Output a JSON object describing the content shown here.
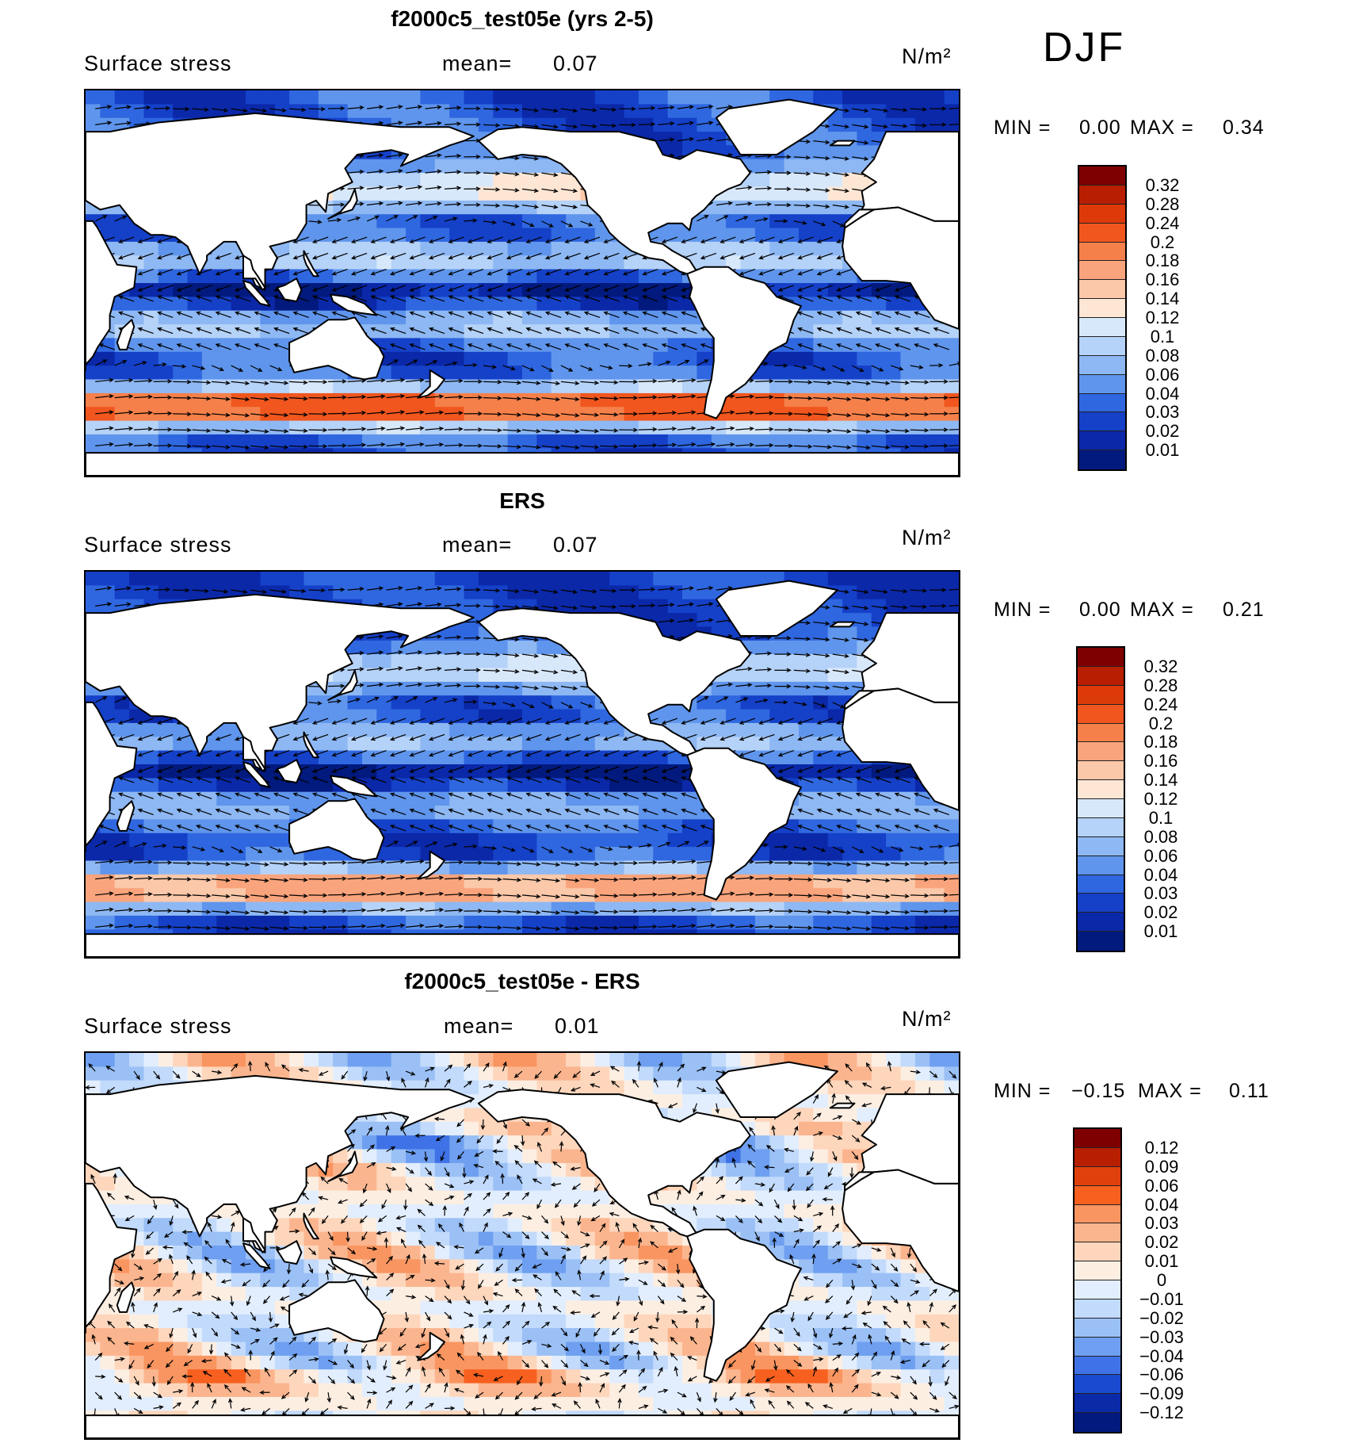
{
  "season": "DJF",
  "panels": [
    {
      "title": "f2000c5_test05e (yrs 2-5)",
      "variable": "Surface stress",
      "mean_label": "mean=",
      "mean_value": "0.07",
      "units": "N/m²",
      "min_label": "MIN =",
      "min_value": "0.00",
      "max_label": "MAX =",
      "max_value": "0.34",
      "cbar_ticks": [
        "0.32",
        "0.28",
        "0.24",
        "0.2",
        "0.18",
        "0.16",
        "0.14",
        "0.12",
        "0.1",
        "0.08",
        "0.06",
        "0.04",
        "0.03",
        "0.02",
        "0.01"
      ]
    },
    {
      "title": "ERS",
      "variable": "Surface stress",
      "mean_label": "mean=",
      "mean_value": "0.07",
      "units": "N/m²",
      "min_label": "MIN =",
      "min_value": "0.00",
      "max_label": "MAX =",
      "max_value": "0.21",
      "cbar_ticks": [
        "0.32",
        "0.28",
        "0.24",
        "0.2",
        "0.18",
        "0.16",
        "0.14",
        "0.12",
        "0.1",
        "0.08",
        "0.06",
        "0.04",
        "0.03",
        "0.02",
        "0.01"
      ]
    },
    {
      "title": "f2000c5_test05e - ERS",
      "variable": "Surface stress",
      "mean_label": "mean=",
      "mean_value": "0.01",
      "units": "N/m²",
      "min_label": "MIN =",
      "min_value": "−0.15",
      "max_label": "MAX =",
      "max_value": "0.11",
      "cbar_ticks": [
        "0.12",
        "0.09",
        "0.06",
        "0.04",
        "0.03",
        "0.02",
        "0.01",
        "0",
        "−0.01",
        "−0.02",
        "−0.03",
        "−0.04",
        "−0.06",
        "−0.09",
        "−0.12"
      ]
    }
  ],
  "colors": {
    "abs_scale": [
      "#7f0000",
      "#b81e00",
      "#dd3a0a",
      "#f0561e",
      "#f6804a",
      "#f9a47c",
      "#fbc8aa",
      "#fde6d4",
      "#d8e8fb",
      "#b5d2f8",
      "#8eb8f3",
      "#5f95ec",
      "#2f67e0",
      "#1540c8",
      "#0a28a8",
      "#021a7e"
    ],
    "diff_scale": [
      "#7f0000",
      "#b81e00",
      "#e0400c",
      "#f7601f",
      "#f99560",
      "#fbb58e",
      "#fdd6bc",
      "#fdeee2",
      "#e2eefd",
      "#c2dafb",
      "#9ac0f6",
      "#6e9ff0",
      "#3f72e6",
      "#1a4ad0",
      "#0a2aa8",
      "#021a7e"
    ]
  },
  "chart_data": [
    {
      "type": "heatmap",
      "title": "f2000c5_test05e (yrs 2-5)",
      "subtitle": "DJF",
      "variable": "Surface stress",
      "units": "N/m²",
      "mean": 0.07,
      "min": 0.0,
      "max": 0.34,
      "levels": [
        0.01,
        0.02,
        0.03,
        0.04,
        0.06,
        0.08,
        0.1,
        0.12,
        0.14,
        0.16,
        0.18,
        0.2,
        0.24,
        0.28,
        0.32
      ],
      "overlay": "vectors"
    },
    {
      "type": "heatmap",
      "title": "ERS",
      "subtitle": "DJF",
      "variable": "Surface stress",
      "units": "N/m²",
      "mean": 0.07,
      "min": 0.0,
      "max": 0.21,
      "levels": [
        0.01,
        0.02,
        0.03,
        0.04,
        0.06,
        0.08,
        0.1,
        0.12,
        0.14,
        0.16,
        0.18,
        0.2,
        0.24,
        0.28,
        0.32
      ],
      "overlay": "vectors"
    },
    {
      "type": "heatmap",
      "title": "f2000c5_test05e - ERS",
      "subtitle": "DJF",
      "variable": "Surface stress",
      "units": "N/m²",
      "mean": 0.01,
      "min": -0.15,
      "max": 0.11,
      "levels": [
        -0.12,
        -0.09,
        -0.06,
        -0.04,
        -0.03,
        -0.02,
        -0.01,
        0,
        0.01,
        0.02,
        0.03,
        0.04,
        0.06,
        0.09,
        0.12
      ],
      "overlay": "vectors"
    }
  ]
}
